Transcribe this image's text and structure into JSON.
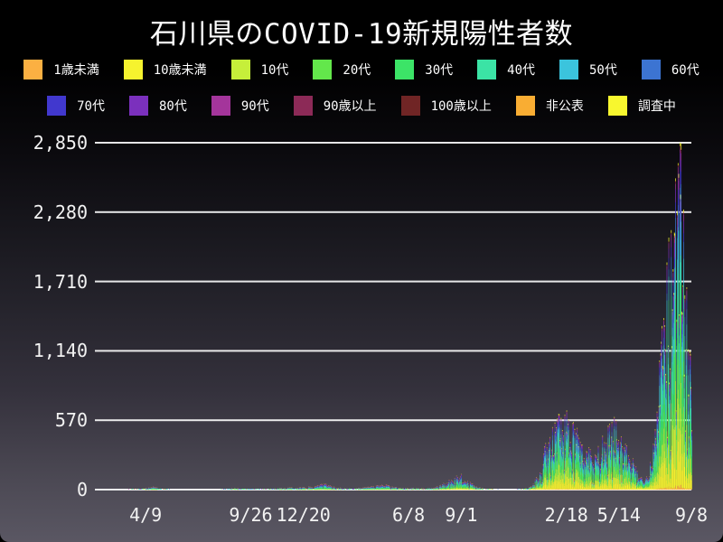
{
  "title": "石川県のCOVID-19新規陽性者数",
  "legend": {
    "rows": [
      [
        "1歳未満",
        "10歳未満",
        "10代",
        "20代",
        "30代",
        "40代",
        "50代",
        "60代"
      ],
      [
        "70代",
        "80代",
        "90代",
        "90歳以上",
        "100歳以上",
        "非公表",
        "調査中"
      ]
    ]
  },
  "chart_data": {
    "type": "bar",
    "stacked": true,
    "title": "石川県のCOVID-19新規陽性者数",
    "xlabel": "",
    "ylabel": "",
    "ylim": [
      0,
      2850
    ],
    "grid": "horizontal",
    "grid_color": "#f2f2f2",
    "background": "gradient-black-to-slate",
    "legend_position": "top",
    "yticks": [
      {
        "value": 0,
        "label": "0"
      },
      {
        "value": 570,
        "label": "570"
      },
      {
        "value": 1140,
        "label": "1,140"
      },
      {
        "value": 1710,
        "label": "1,710"
      },
      {
        "value": 2280,
        "label": "2,280"
      },
      {
        "value": 2850,
        "label": "2,850"
      }
    ],
    "x_domain_days": [
      0,
      964
    ],
    "xticks": [
      {
        "day": 82,
        "label": "4/9"
      },
      {
        "day": 252,
        "label": "9/26"
      },
      {
        "day": 337,
        "label": "12/20"
      },
      {
        "day": 507,
        "label": "6/8"
      },
      {
        "day": 592,
        "label": "9/1"
      },
      {
        "day": 762,
        "label": "2/18"
      },
      {
        "day": 847,
        "label": "5/14"
      },
      {
        "day": 964,
        "label": "9/8"
      }
    ],
    "series": [
      {
        "name": "1歳未満",
        "color": "#fbb042"
      },
      {
        "name": "10歳未満",
        "color": "#f6f32e"
      },
      {
        "name": "10代",
        "color": "#c6ef3a"
      },
      {
        "name": "20代",
        "color": "#63e74b"
      },
      {
        "name": "30代",
        "color": "#3ce467"
      },
      {
        "name": "40代",
        "color": "#3be3a5"
      },
      {
        "name": "50代",
        "color": "#3bc4dd"
      },
      {
        "name": "60代",
        "color": "#3c74d2"
      },
      {
        "name": "70代",
        "color": "#4138ce"
      },
      {
        "name": "80代",
        "color": "#7b30bd"
      },
      {
        "name": "90代",
        "color": "#a4359b"
      },
      {
        "name": "90歳以上",
        "color": "#8c2a57"
      },
      {
        "name": "100歳以上",
        "color": "#702525"
      },
      {
        "name": "非公表",
        "color": "#f9ad33"
      },
      {
        "name": "調査中",
        "color": "#f8f72e"
      }
    ],
    "daily_total_envelope": [
      [
        0,
        0
      ],
      [
        28,
        0
      ],
      [
        36,
        1
      ],
      [
        45,
        2
      ],
      [
        55,
        3
      ],
      [
        65,
        4
      ],
      [
        75,
        7
      ],
      [
        82,
        12
      ],
      [
        90,
        20
      ],
      [
        95,
        25
      ],
      [
        102,
        15
      ],
      [
        110,
        6
      ],
      [
        120,
        3
      ],
      [
        130,
        1
      ],
      [
        140,
        0
      ],
      [
        150,
        1
      ],
      [
        160,
        2
      ],
      [
        175,
        1
      ],
      [
        190,
        1
      ],
      [
        202,
        2
      ],
      [
        210,
        6
      ],
      [
        218,
        10
      ],
      [
        226,
        14
      ],
      [
        235,
        10
      ],
      [
        245,
        6
      ],
      [
        252,
        6
      ],
      [
        265,
        4
      ],
      [
        280,
        6
      ],
      [
        295,
        12
      ],
      [
        310,
        18
      ],
      [
        325,
        15
      ],
      [
        337,
        20
      ],
      [
        350,
        25
      ],
      [
        358,
        32
      ],
      [
        365,
        42
      ],
      [
        375,
        46
      ],
      [
        385,
        30
      ],
      [
        395,
        15
      ],
      [
        405,
        10
      ],
      [
        418,
        10
      ],
      [
        430,
        16
      ],
      [
        445,
        26
      ],
      [
        458,
        38
      ],
      [
        468,
        46
      ],
      [
        478,
        30
      ],
      [
        488,
        18
      ],
      [
        497,
        12
      ],
      [
        507,
        16
      ],
      [
        520,
        12
      ],
      [
        535,
        10
      ],
      [
        548,
        16
      ],
      [
        560,
        40
      ],
      [
        572,
        75
      ],
      [
        582,
        100
      ],
      [
        592,
        120
      ],
      [
        600,
        90
      ],
      [
        610,
        48
      ],
      [
        620,
        20
      ],
      [
        632,
        7
      ],
      [
        645,
        3
      ],
      [
        658,
        2
      ],
      [
        672,
        2
      ],
      [
        685,
        3
      ],
      [
        695,
        8
      ],
      [
        702,
        18
      ],
      [
        708,
        45
      ],
      [
        714,
        110
      ],
      [
        720,
        220
      ],
      [
        726,
        330
      ],
      [
        733,
        440
      ],
      [
        740,
        520
      ],
      [
        748,
        580
      ],
      [
        755,
        600
      ],
      [
        762,
        600
      ],
      [
        770,
        540
      ],
      [
        778,
        470
      ],
      [
        786,
        400
      ],
      [
        794,
        340
      ],
      [
        802,
        310
      ],
      [
        810,
        330
      ],
      [
        818,
        380
      ],
      [
        826,
        470
      ],
      [
        834,
        540
      ],
      [
        842,
        560
      ],
      [
        850,
        500
      ],
      [
        858,
        400
      ],
      [
        866,
        280
      ],
      [
        874,
        180
      ],
      [
        881,
        110
      ],
      [
        888,
        90
      ],
      [
        894,
        120
      ],
      [
        900,
        300
      ],
      [
        906,
        700
      ],
      [
        912,
        1100
      ],
      [
        918,
        1550
      ],
      [
        924,
        1800
      ],
      [
        930,
        2000
      ],
      [
        936,
        2250
      ],
      [
        941,
        2500
      ],
      [
        945,
        2850
      ],
      [
        949,
        2400
      ],
      [
        953,
        1950
      ],
      [
        957,
        1550
      ],
      [
        961,
        1250
      ],
      [
        964,
        1050
      ]
    ],
    "peak": {
      "day": 945,
      "total": 2850
    },
    "age_composition": {
      "profile_2020": [
        0.005,
        0.02,
        0.05,
        0.16,
        0.14,
        0.13,
        0.14,
        0.1,
        0.09,
        0.08,
        0.05,
        0.015,
        0.005,
        0.01,
        0.005
      ],
      "profile_2022": [
        0.01,
        0.13,
        0.14,
        0.13,
        0.15,
        0.15,
        0.1,
        0.06,
        0.05,
        0.04,
        0.02,
        0.005,
        0.002,
        0.003,
        0.01
      ],
      "blend_day_range": [
        450,
        720
      ]
    }
  }
}
